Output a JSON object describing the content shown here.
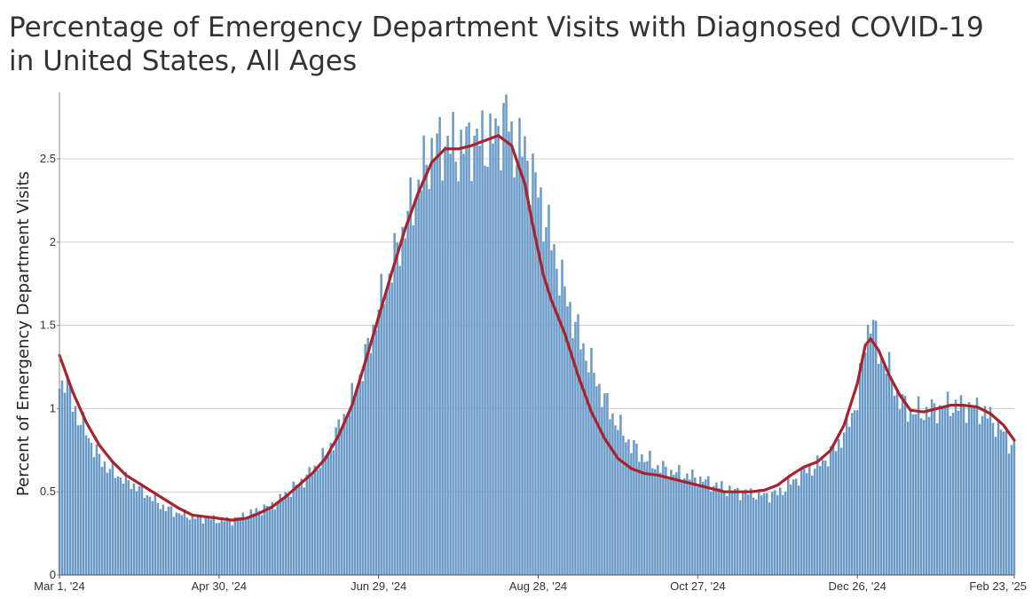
{
  "title": {
    "line1": "Percentage of Emergency Department Visits with Diagnosed COVID-19",
    "line2": "in United States, All Ages"
  },
  "colors": {
    "bars": "#6a9bc8",
    "line": "#a8232b",
    "grid": "#cccccc",
    "axis": "#888888"
  },
  "chart_data": {
    "type": "bar",
    "ylabel": "Percent of Emergency Department Visits",
    "xlabel": "",
    "ylim": [
      0,
      2.9
    ],
    "yticks": [
      0,
      0.5,
      1,
      1.5,
      2,
      2.5
    ],
    "ytick_labels": [
      "0",
      "0.5",
      "1",
      "1.5",
      "2",
      "2.5"
    ],
    "xticks": [
      {
        "label": "Mar 1, '24",
        "day": 0
      },
      {
        "label": "Apr 30, '24",
        "day": 60
      },
      {
        "label": "Jun 29, '24",
        "day": 120
      },
      {
        "label": "Aug 28, '24",
        "day": 180
      },
      {
        "label": "Oct 27, '24",
        "day": 240
      },
      {
        "label": "Dec 26, '24",
        "day": 300
      },
      {
        "label": "Feb 23, '25",
        "day": 359
      }
    ],
    "grid": true,
    "series": [
      {
        "type": "bar",
        "description": "Daily percent (keypoints by day, interpolated)",
        "points": [
          [
            0,
            1.12
          ],
          [
            2,
            1.2
          ],
          [
            5,
            1.02
          ],
          [
            10,
            0.86
          ],
          [
            15,
            0.7
          ],
          [
            20,
            0.62
          ],
          [
            25,
            0.57
          ],
          [
            30,
            0.52
          ],
          [
            35,
            0.46
          ],
          [
            40,
            0.4
          ],
          [
            45,
            0.37
          ],
          [
            50,
            0.35
          ],
          [
            55,
            0.34
          ],
          [
            60,
            0.33
          ],
          [
            65,
            0.33
          ],
          [
            70,
            0.36
          ],
          [
            75,
            0.39
          ],
          [
            80,
            0.42
          ],
          [
            85,
            0.48
          ],
          [
            90,
            0.55
          ],
          [
            95,
            0.62
          ],
          [
            100,
            0.72
          ],
          [
            105,
            0.88
          ],
          [
            110,
            1.05
          ],
          [
            115,
            1.3
          ],
          [
            120,
            1.6
          ],
          [
            125,
            1.85
          ],
          [
            130,
            2.1
          ],
          [
            135,
            2.35
          ],
          [
            140,
            2.55
          ],
          [
            145,
            2.6
          ],
          [
            150,
            2.55
          ],
          [
            155,
            2.62
          ],
          [
            160,
            2.6
          ],
          [
            165,
            2.65
          ],
          [
            168,
            2.8
          ],
          [
            170,
            2.58
          ],
          [
            175,
            2.55
          ],
          [
            180,
            2.3
          ],
          [
            185,
            2.0
          ],
          [
            190,
            1.7
          ],
          [
            195,
            1.45
          ],
          [
            200,
            1.25
          ],
          [
            205,
            1.05
          ],
          [
            210,
            0.9
          ],
          [
            215,
            0.78
          ],
          [
            220,
            0.7
          ],
          [
            225,
            0.65
          ],
          [
            230,
            0.62
          ],
          [
            235,
            0.6
          ],
          [
            240,
            0.58
          ],
          [
            245,
            0.55
          ],
          [
            250,
            0.52
          ],
          [
            255,
            0.5
          ],
          [
            260,
            0.49
          ],
          [
            265,
            0.48
          ],
          [
            270,
            0.49
          ],
          [
            275,
            0.55
          ],
          [
            280,
            0.62
          ],
          [
            285,
            0.66
          ],
          [
            290,
            0.72
          ],
          [
            295,
            0.85
          ],
          [
            300,
            1.05
          ],
          [
            303,
            1.4
          ],
          [
            305,
            1.55
          ],
          [
            308,
            1.35
          ],
          [
            312,
            1.22
          ],
          [
            316,
            1.05
          ],
          [
            320,
            0.98
          ],
          [
            325,
            0.98
          ],
          [
            330,
            1.0
          ],
          [
            335,
            1.02
          ],
          [
            340,
            1.01
          ],
          [
            345,
            1.0
          ],
          [
            350,
            0.95
          ],
          [
            355,
            0.85
          ],
          [
            359,
            0.76
          ]
        ]
      },
      {
        "type": "line",
        "description": "Rolling average",
        "points": [
          [
            0,
            1.32
          ],
          [
            5,
            1.1
          ],
          [
            10,
            0.92
          ],
          [
            15,
            0.78
          ],
          [
            20,
            0.68
          ],
          [
            25,
            0.6
          ],
          [
            30,
            0.55
          ],
          [
            35,
            0.5
          ],
          [
            40,
            0.45
          ],
          [
            45,
            0.4
          ],
          [
            50,
            0.36
          ],
          [
            55,
            0.35
          ],
          [
            60,
            0.34
          ],
          [
            65,
            0.33
          ],
          [
            70,
            0.34
          ],
          [
            75,
            0.37
          ],
          [
            80,
            0.41
          ],
          [
            85,
            0.47
          ],
          [
            90,
            0.54
          ],
          [
            95,
            0.61
          ],
          [
            100,
            0.7
          ],
          [
            105,
            0.84
          ],
          [
            110,
            1.02
          ],
          [
            115,
            1.28
          ],
          [
            120,
            1.55
          ],
          [
            125,
            1.82
          ],
          [
            130,
            2.08
          ],
          [
            135,
            2.3
          ],
          [
            140,
            2.48
          ],
          [
            145,
            2.56
          ],
          [
            150,
            2.56
          ],
          [
            155,
            2.58
          ],
          [
            160,
            2.61
          ],
          [
            165,
            2.64
          ],
          [
            170,
            2.58
          ],
          [
            175,
            2.35
          ],
          [
            178,
            2.1
          ],
          [
            182,
            1.8
          ],
          [
            185,
            1.65
          ],
          [
            190,
            1.45
          ],
          [
            195,
            1.2
          ],
          [
            200,
            0.98
          ],
          [
            205,
            0.82
          ],
          [
            210,
            0.7
          ],
          [
            215,
            0.64
          ],
          [
            220,
            0.61
          ],
          [
            225,
            0.6
          ],
          [
            230,
            0.58
          ],
          [
            235,
            0.56
          ],
          [
            240,
            0.54
          ],
          [
            245,
            0.52
          ],
          [
            250,
            0.5
          ],
          [
            255,
            0.5
          ],
          [
            260,
            0.5
          ],
          [
            265,
            0.51
          ],
          [
            270,
            0.54
          ],
          [
            275,
            0.6
          ],
          [
            280,
            0.65
          ],
          [
            285,
            0.68
          ],
          [
            290,
            0.75
          ],
          [
            295,
            0.9
          ],
          [
            300,
            1.15
          ],
          [
            303,
            1.38
          ],
          [
            305,
            1.42
          ],
          [
            308,
            1.35
          ],
          [
            312,
            1.2
          ],
          [
            316,
            1.08
          ],
          [
            320,
            0.99
          ],
          [
            325,
            0.98
          ],
          [
            330,
            1.0
          ],
          [
            335,
            1.02
          ],
          [
            340,
            1.02
          ],
          [
            345,
            1.01
          ],
          [
            350,
            0.97
          ],
          [
            355,
            0.9
          ],
          [
            359,
            0.81
          ]
        ]
      }
    ]
  }
}
